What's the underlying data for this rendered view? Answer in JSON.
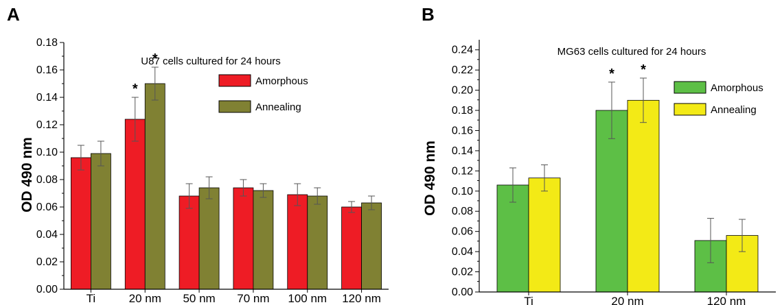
{
  "chart_data": [
    {
      "panel": "A",
      "type": "bar",
      "annotation": "U87 cells cultured for 24 hours",
      "ylabel": "OD 490 nm",
      "xlabel": "",
      "ylim": [
        0,
        0.18
      ],
      "yticks": [
        "0.00",
        "0.02",
        "0.04",
        "0.06",
        "0.08",
        "0.10",
        "0.12",
        "0.14",
        "0.16",
        "0.18"
      ],
      "categories": [
        "Ti",
        "20 nm",
        "50 nm",
        "70 nm",
        "100 nm",
        "120 nm"
      ],
      "legend_position": "top-right",
      "grid": false,
      "series": [
        {
          "name": "Amorphous",
          "color": "#ee1c25",
          "values": [
            0.096,
            0.124,
            0.068,
            0.074,
            0.069,
            0.06
          ],
          "errors": [
            0.009,
            0.016,
            0.009,
            0.006,
            0.008,
            0.004
          ]
        },
        {
          "name": "Annealing",
          "color": "#808133",
          "values": [
            0.099,
            0.15,
            0.074,
            0.072,
            0.068,
            0.063
          ],
          "errors": [
            0.009,
            0.012,
            0.008,
            0.005,
            0.006,
            0.005
          ]
        }
      ],
      "significance": [
        {
          "category": "20 nm",
          "series": "Amorphous",
          "mark": "*"
        },
        {
          "category": "20 nm",
          "series": "Annealing",
          "mark": "*"
        }
      ]
    },
    {
      "panel": "B",
      "type": "bar",
      "annotation": "MG63 cells cultured for 24 hours",
      "ylabel": "OD 490 nm",
      "xlabel": "",
      "ylim": [
        0,
        0.25
      ],
      "yticks": [
        "0.00",
        "0.02",
        "0.04",
        "0.06",
        "0.08",
        "0.10",
        "0.12",
        "0.14",
        "0.16",
        "0.18",
        "0.20",
        "0.22",
        "0.24"
      ],
      "categories": [
        "Ti",
        "20 nm",
        "120 nm"
      ],
      "legend_position": "top-right",
      "grid": false,
      "series": [
        {
          "name": "Amorphous",
          "color": "#5dbf46",
          "values": [
            0.106,
            0.18,
            0.051
          ],
          "errors": [
            0.017,
            0.028,
            0.022
          ]
        },
        {
          "name": "Annealing",
          "color": "#f3ea16",
          "values": [
            0.113,
            0.19,
            0.056
          ],
          "errors": [
            0.013,
            0.022,
            0.016
          ]
        }
      ],
      "significance": [
        {
          "category": "20 nm",
          "series": "Amorphous",
          "mark": "*"
        },
        {
          "category": "20 nm",
          "series": "Annealing",
          "mark": "*"
        }
      ]
    }
  ]
}
